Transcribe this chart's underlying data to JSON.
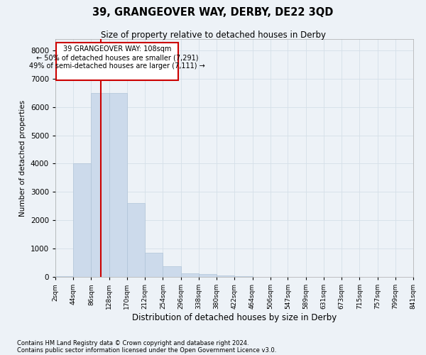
{
  "title1": "39, GRANGEOVER WAY, DERBY, DE22 3QD",
  "title2": "Size of property relative to detached houses in Derby",
  "xlabel": "Distribution of detached houses by size in Derby",
  "ylabel": "Number of detached properties",
  "footnote1": "Contains HM Land Registry data © Crown copyright and database right 2024.",
  "footnote2": "Contains public sector information licensed under the Open Government Licence v3.0.",
  "annotation_line1": "39 GRANGEOVER WAY: 108sqm",
  "annotation_line2": "← 50% of detached houses are smaller (7,291)",
  "annotation_line3": "49% of semi-detached houses are larger (7,111) →",
  "bar_color": "#ccdaeb",
  "bar_edge_color": "#b0c4d8",
  "red_line_x": 108,
  "bin_edges": [
    2,
    44,
    86,
    128,
    170,
    212,
    254,
    296,
    338,
    380,
    422,
    464,
    506,
    547,
    589,
    631,
    673,
    715,
    757,
    799,
    841
  ],
  "bar_heights": [
    30,
    4000,
    6500,
    6500,
    2600,
    850,
    380,
    120,
    100,
    50,
    15,
    5,
    2,
    1,
    0,
    0,
    0,
    0,
    0,
    0
  ],
  "ylim": [
    0,
    8400
  ],
  "yticks": [
    0,
    1000,
    2000,
    3000,
    4000,
    5000,
    6000,
    7000,
    8000
  ],
  "grid_color": "#d5dfe8",
  "annotation_box_color": "#ffffff",
  "annotation_box_edge": "#cc0000",
  "red_line_color": "#cc0000",
  "background_color": "#edf2f7"
}
